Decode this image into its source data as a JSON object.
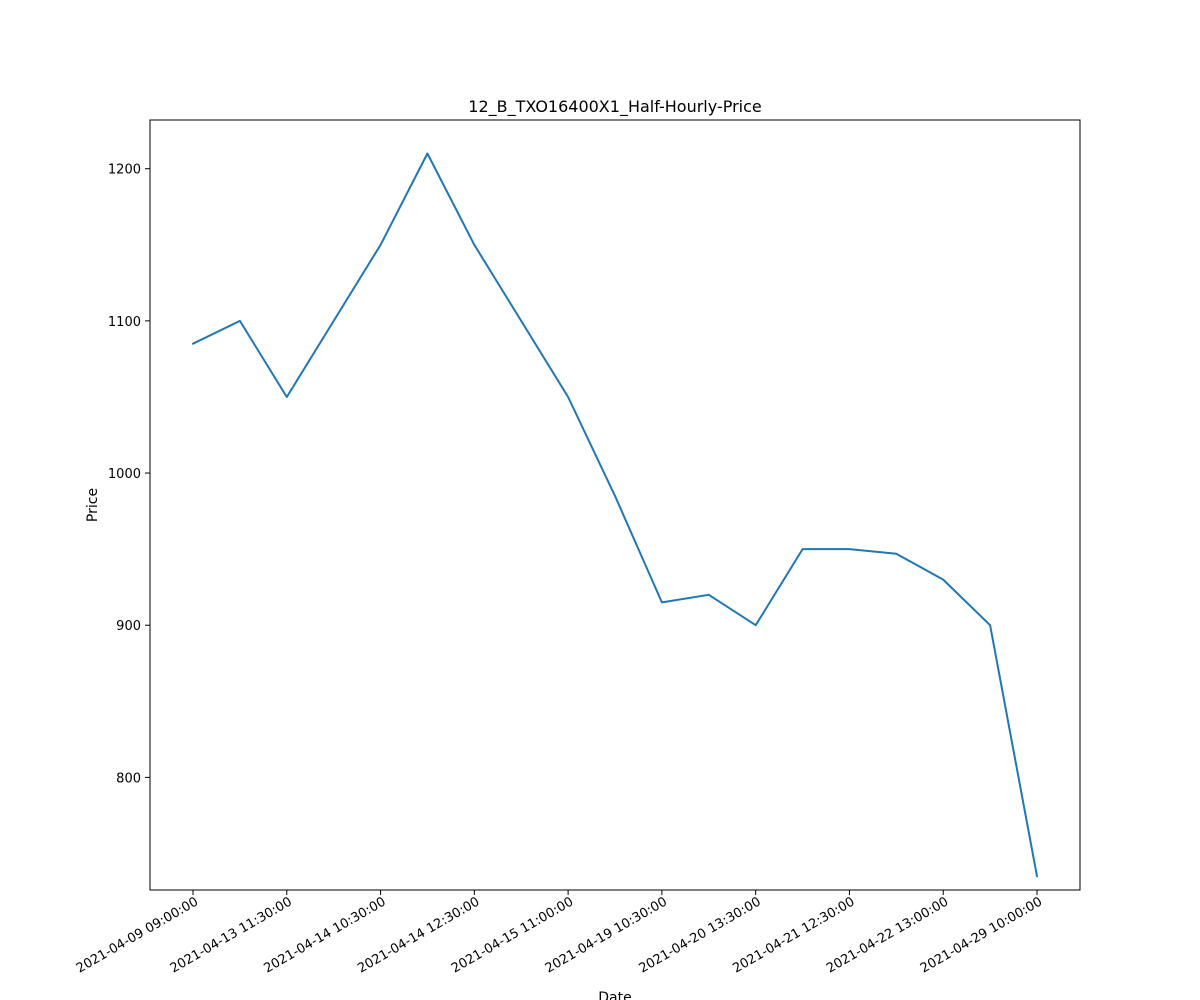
{
  "chart_data": {
    "type": "line",
    "title": "12_B_TXO16400X1_Half-Hourly-Price",
    "xlabel": "Date",
    "ylabel": "Price",
    "x": [
      "2021-04-09 09:00:00",
      "",
      "2021-04-13 11:30:00",
      "",
      "2021-04-14 10:30:00",
      "",
      "2021-04-14 12:30:00",
      "",
      "2021-04-15 11:00:00",
      "",
      "2021-04-19 10:30:00",
      "",
      "2021-04-20 13:30:00",
      "",
      "2021-04-21 12:30:00",
      "",
      "2021-04-22 13:00:00",
      "",
      "2021-04-29 10:00:00"
    ],
    "series": [
      {
        "values": [
          1085,
          1100,
          1050,
          1100,
          1150,
          1210,
          1150,
          1100,
          1050,
          985,
          915,
          920,
          900,
          950,
          950,
          947,
          930,
          900,
          735
        ]
      }
    ],
    "xtick_labels": [
      "2021-04-09 09:00:00",
      "2021-04-13 11:30:00",
      "2021-04-14 10:30:00",
      "2021-04-14 12:30:00",
      "2021-04-15 11:00:00",
      "2021-04-19 10:30:00",
      "2021-04-20 13:30:00",
      "2021-04-21 12:30:00",
      "2021-04-22 13:00:00",
      "2021-04-29 10:00:00"
    ],
    "yticks": [
      800,
      900,
      1000,
      1100,
      1200
    ],
    "ylim": [
      726,
      1232
    ],
    "grid": false,
    "line_color": "#1f77b4"
  }
}
